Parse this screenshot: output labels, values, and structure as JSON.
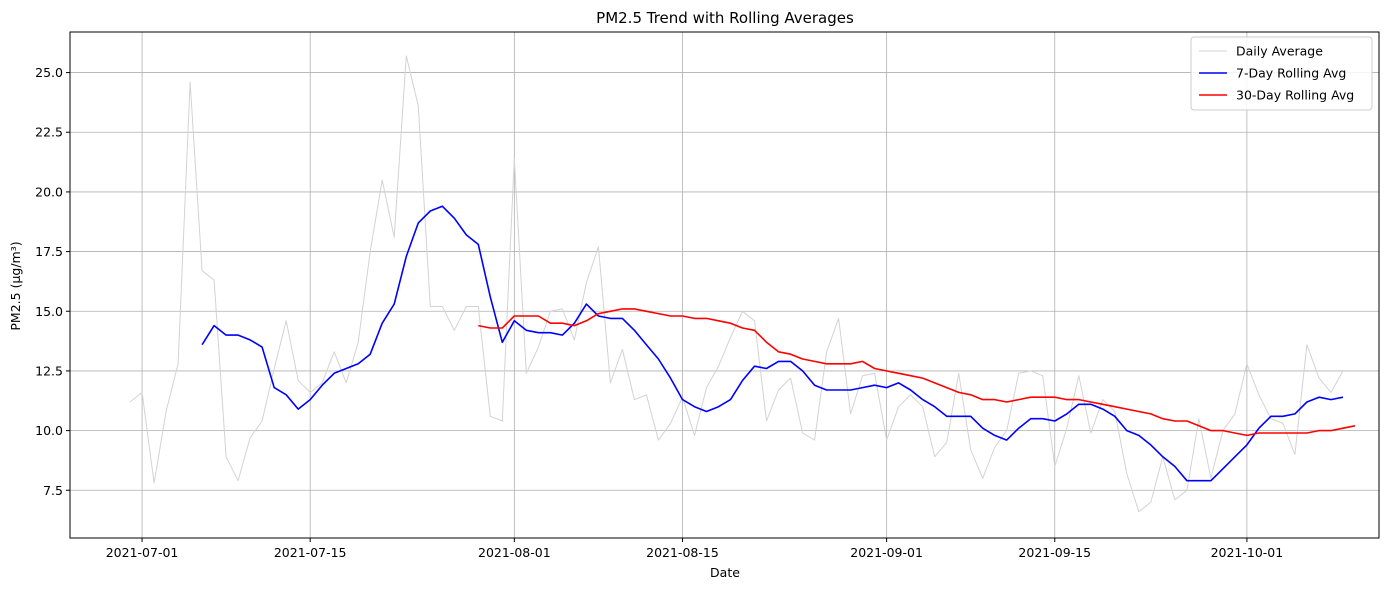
{
  "chart_data": {
    "type": "line",
    "title": "PM2.5 Trend with Rolling Averages",
    "xlabel": "Date",
    "ylabel": "PM2.5 (µg/m³)",
    "grid": true,
    "legend_position": "top-right",
    "x_start": "2021-06-30",
    "x_ticks": [
      "2021-07-01",
      "2021-07-15",
      "2021-08-01",
      "2021-08-15",
      "2021-09-01",
      "2021-09-15",
      "2021-10-01"
    ],
    "xlim": [
      "2021-06-25",
      "2021-10-12"
    ],
    "y_ticks": [
      7.5,
      10.0,
      12.5,
      15.0,
      17.5,
      20.0,
      22.5,
      25.0
    ],
    "ylim": [
      5.5,
      26.7
    ],
    "series": [
      {
        "name": "Daily Average",
        "color": "#d3d3d3",
        "start": "2021-06-30",
        "values": [
          11.2,
          11.6,
          7.8,
          10.8,
          12.8,
          24.6,
          16.7,
          16.3,
          8.9,
          7.9,
          9.7,
          10.4,
          12.6,
          14.6,
          12.1,
          11.6,
          12.0,
          13.3,
          12.0,
          13.7,
          17.5,
          20.5,
          18.1,
          25.7,
          23.6,
          15.2,
          15.2,
          14.2,
          15.2,
          15.2,
          10.6,
          10.4,
          21.4,
          12.4,
          13.5,
          15.0,
          15.1,
          13.8,
          16.2,
          17.7,
          12.0,
          13.4,
          11.3,
          11.5,
          9.6,
          10.3,
          11.4,
          9.8,
          11.8,
          12.7,
          13.9,
          15.0,
          14.6,
          10.4,
          11.7,
          12.2,
          9.9,
          9.6,
          13.3,
          14.7,
          10.7,
          12.3,
          12.4,
          9.6,
          11.0,
          11.5,
          11.0,
          8.9,
          9.5,
          12.4,
          9.2,
          8.0,
          9.3,
          10.0,
          12.4,
          12.5,
          12.3,
          8.5,
          10.1,
          12.3,
          9.9,
          11.3,
          10.8,
          8.2,
          6.6,
          7.0,
          8.9,
          7.1,
          7.5,
          10.5,
          8.0,
          10.0,
          10.7,
          12.8,
          11.5,
          10.5,
          10.3,
          9.0,
          13.6,
          12.2,
          11.6,
          12.5
        ]
      },
      {
        "name": "7-Day Rolling Avg",
        "color": "#0000ff",
        "start": "2021-07-06",
        "values": [
          13.6,
          14.4,
          14.0,
          14.0,
          13.8,
          13.5,
          11.8,
          11.5,
          10.9,
          11.3,
          11.9,
          12.4,
          12.6,
          12.8,
          13.2,
          14.5,
          15.3,
          17.3,
          18.7,
          19.2,
          19.4,
          18.9,
          18.2,
          17.8,
          15.6,
          13.7,
          14.6,
          14.2,
          14.1,
          14.1,
          14.0,
          14.5,
          15.3,
          14.8,
          14.7,
          14.7,
          14.2,
          13.6,
          13.0,
          12.2,
          11.3,
          11.0,
          10.8,
          11.0,
          11.3,
          12.1,
          12.7,
          12.6,
          12.9,
          12.9,
          12.5,
          11.9,
          11.7,
          11.7,
          11.7,
          11.8,
          11.9,
          11.8,
          12.0,
          11.7,
          11.3,
          11.0,
          10.6,
          10.6,
          10.6,
          10.1,
          9.8,
          9.6,
          10.1,
          10.5,
          10.5,
          10.4,
          10.7,
          11.1,
          11.1,
          10.9,
          10.6,
          10.0,
          9.8,
          9.4,
          8.9,
          8.5,
          7.9,
          7.9,
          7.9,
          8.4,
          8.9,
          9.4,
          10.1,
          10.6,
          10.6,
          10.7,
          11.2,
          11.4,
          11.3,
          11.4
        ]
      },
      {
        "name": "30-Day Rolling Avg",
        "color": "#ff0000",
        "start": "2021-07-29",
        "values": [
          14.4,
          14.3,
          14.3,
          14.8,
          14.8,
          14.8,
          14.5,
          14.5,
          14.4,
          14.6,
          14.9,
          15.0,
          15.1,
          15.1,
          15.0,
          14.9,
          14.8,
          14.8,
          14.7,
          14.7,
          14.6,
          14.5,
          14.3,
          14.2,
          13.7,
          13.3,
          13.2,
          13.0,
          12.9,
          12.8,
          12.8,
          12.8,
          12.9,
          12.6,
          12.5,
          12.4,
          12.3,
          12.2,
          12.0,
          11.8,
          11.6,
          11.5,
          11.3,
          11.3,
          11.2,
          11.3,
          11.4,
          11.4,
          11.4,
          11.3,
          11.3,
          11.2,
          11.1,
          11.0,
          10.9,
          10.8,
          10.7,
          10.5,
          10.4,
          10.4,
          10.2,
          10.0,
          10.0,
          9.9,
          9.8,
          9.9,
          9.9,
          9.9,
          9.9,
          9.9,
          10.0,
          10.0,
          10.1,
          10.2
        ]
      }
    ]
  }
}
